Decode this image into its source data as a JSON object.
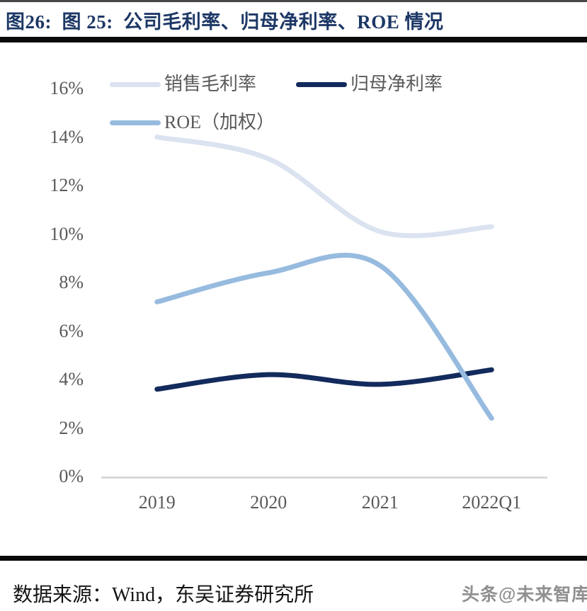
{
  "header": {
    "title": "图26:  图 25:  公司毛利率、归母净利率、ROE 情况"
  },
  "chart_data": {
    "type": "line",
    "title": "公司毛利率、归母净利率、ROE 情况",
    "categories": [
      "2019",
      "2020",
      "2021",
      "2022Q1"
    ],
    "series": [
      {
        "id": "gross-margin",
        "name": "销售毛利率",
        "color": "#dbe3f0",
        "values": [
          14.0,
          13.1,
          10.1,
          10.3
        ]
      },
      {
        "id": "net-margin",
        "name": "归母净利率",
        "color": "#132a5c",
        "values": [
          3.6,
          4.2,
          3.8,
          4.4
        ]
      },
      {
        "id": "roe-weighted",
        "name": "ROE（加权）",
        "color": "#97bbdf",
        "values": [
          7.2,
          8.4,
          8.7,
          2.4
        ]
      }
    ],
    "ylim": [
      0,
      16
    ],
    "y_tick_step": 2,
    "y_tick_labels": [
      "0%",
      "2%",
      "4%",
      "6%",
      "8%",
      "10%",
      "12%",
      "14%",
      "16%"
    ],
    "xlabel": "",
    "ylabel": "",
    "grid": false,
    "smooth": true,
    "legend_position": "top-left",
    "axis_line_color": "#d9d9d9",
    "line_width": 7
  },
  "footer": {
    "source": "数据来源：Wind，东吴证券研究所",
    "watermark": "头条@未来智库"
  }
}
